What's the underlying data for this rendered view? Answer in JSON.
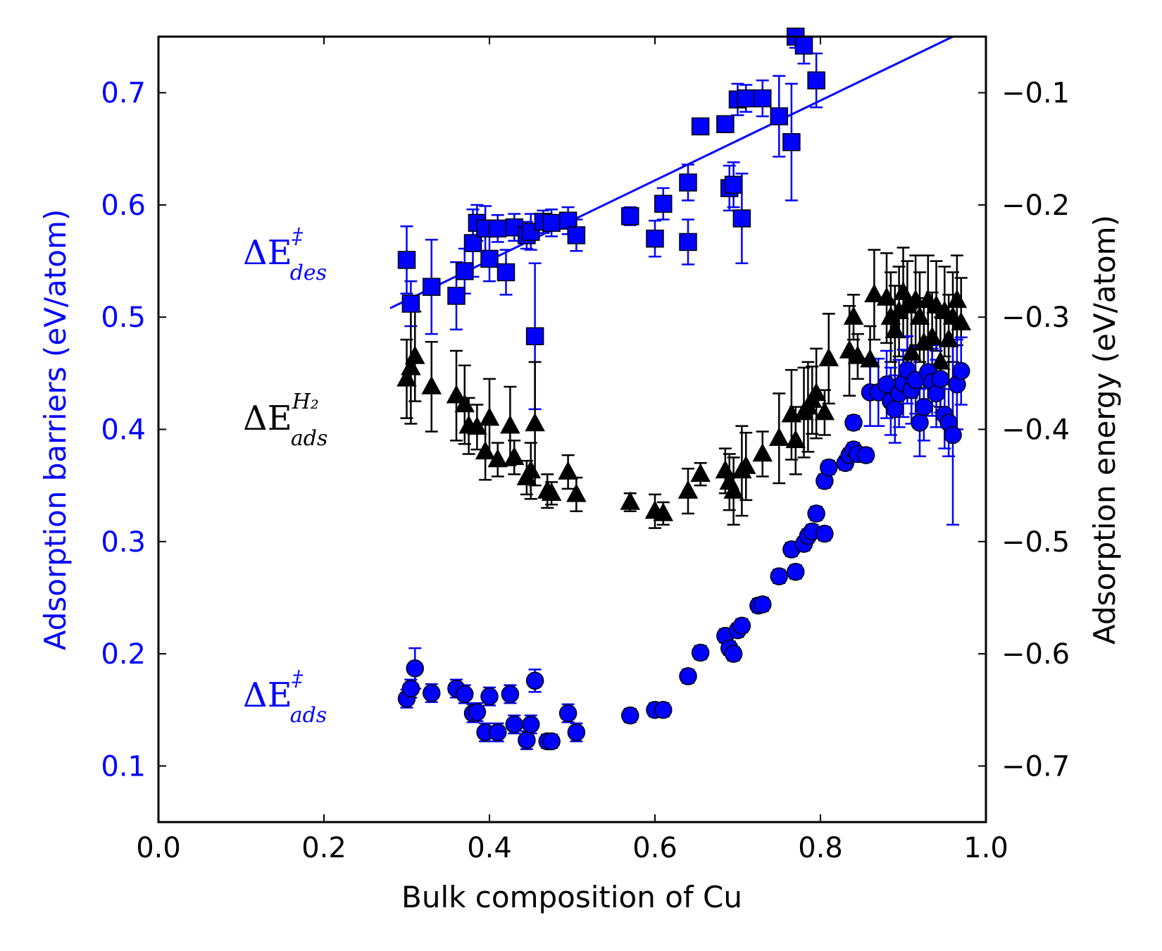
{
  "chart_data": {
    "type": "scatter",
    "xlabel": "Bulk composition of Cu",
    "ylabel_left": "Adsorption barriers (eV/atom)",
    "ylabel_right": "Adsorption energy (eV/atom)",
    "xlim": [
      0.0,
      1.0
    ],
    "ylim_left": [
      0.05,
      0.75
    ],
    "ylim_right": [
      -0.75,
      -0.05
    ],
    "x_ticks": [
      "0.0",
      "0.2",
      "0.4",
      "0.6",
      "0.8",
      "1.0"
    ],
    "y_left_ticks": [
      "0.1",
      "0.2",
      "0.3",
      "0.4",
      "0.5",
      "0.6",
      "0.7"
    ],
    "y_right_ticks": [
      "−0.7",
      "−0.6",
      "−0.5",
      "−0.4",
      "−0.3",
      "−0.2",
      "−0.1"
    ],
    "grid": false,
    "colors": {
      "barrier": "#0000ff",
      "energy": "#000000"
    },
    "series": [
      {
        "id": "des",
        "label_base": "ΔE",
        "label_sup": "‡",
        "label_sub": "des",
        "axis": "left",
        "marker": "square",
        "color": "#0000ff",
        "points": [
          [
            0.3,
            0.551,
            0.03
          ],
          [
            0.305,
            0.512,
            0.02
          ],
          [
            0.33,
            0.527,
            0.042
          ],
          [
            0.36,
            0.519,
            0.03
          ],
          [
            0.37,
            0.541,
            0.02
          ],
          [
            0.38,
            0.566,
            0.03
          ],
          [
            0.385,
            0.584,
            0.016
          ],
          [
            0.395,
            0.579,
            0.02
          ],
          [
            0.4,
            0.552,
            0.02
          ],
          [
            0.41,
            0.579,
            0.012
          ],
          [
            0.42,
            0.54,
            0.02
          ],
          [
            0.43,
            0.58,
            0.012
          ],
          [
            0.445,
            0.573,
            0.012
          ],
          [
            0.45,
            0.576,
            0.016
          ],
          [
            0.455,
            0.483,
            0.065
          ],
          [
            0.465,
            0.585,
            0.01
          ],
          [
            0.475,
            0.584,
            0.012
          ],
          [
            0.495,
            0.586,
            0.012
          ],
          [
            0.505,
            0.573,
            0.014
          ],
          [
            0.57,
            0.59,
            0.008
          ],
          [
            0.6,
            0.57,
            0.016
          ],
          [
            0.61,
            0.601,
            0.014
          ],
          [
            0.64,
            0.567,
            0.02
          ],
          [
            0.64,
            0.62,
            0.016
          ],
          [
            0.655,
            0.67,
            0.006
          ],
          [
            0.685,
            0.672,
            0.006
          ],
          [
            0.69,
            0.615,
            0.02
          ],
          [
            0.695,
            0.618,
            0.02
          ],
          [
            0.7,
            0.694,
            0.014
          ],
          [
            0.705,
            0.588,
            0.04
          ],
          [
            0.71,
            0.695,
            0.012
          ],
          [
            0.73,
            0.695,
            0.016
          ],
          [
            0.75,
            0.679,
            0.036
          ],
          [
            0.765,
            0.656,
            0.052
          ],
          [
            0.77,
            0.75,
            0.01
          ],
          [
            0.78,
            0.742,
            0.016
          ],
          [
            0.795,
            0.711,
            0.024
          ]
        ],
        "fit": {
          "x": [
            0.28,
            0.96
          ],
          "y": [
            0.508,
            0.75
          ]
        }
      },
      {
        "id": "h2",
        "label_base": "ΔE",
        "label_sup": "H₂",
        "label_sub": "ads",
        "axis": "right",
        "marker": "triangle",
        "color": "#000000",
        "points": [
          [
            0.3,
            -0.355,
            0.035
          ],
          [
            0.305,
            -0.345,
            0.05
          ],
          [
            0.31,
            -0.335,
            0.04
          ],
          [
            0.33,
            -0.362,
            0.04
          ],
          [
            0.36,
            -0.37,
            0.04
          ],
          [
            0.37,
            -0.378,
            0.035
          ],
          [
            0.375,
            -0.397,
            0.025
          ],
          [
            0.385,
            -0.398,
            0.02
          ],
          [
            0.395,
            -0.42,
            0.025
          ],
          [
            0.4,
            -0.39,
            0.035
          ],
          [
            0.41,
            -0.427,
            0.015
          ],
          [
            0.425,
            -0.397,
            0.035
          ],
          [
            0.43,
            -0.425,
            0.015
          ],
          [
            0.445,
            -0.443,
            0.015
          ],
          [
            0.45,
            -0.437,
            0.025
          ],
          [
            0.455,
            -0.395,
            0.055
          ],
          [
            0.47,
            -0.455,
            0.015
          ],
          [
            0.475,
            -0.457,
            0.01
          ],
          [
            0.495,
            -0.438,
            0.015
          ],
          [
            0.505,
            -0.458,
            0.015
          ],
          [
            0.57,
            -0.465,
            0.008
          ],
          [
            0.6,
            -0.473,
            0.015
          ],
          [
            0.61,
            -0.475,
            0.01
          ],
          [
            0.64,
            -0.455,
            0.02
          ],
          [
            0.655,
            -0.44,
            0.01
          ],
          [
            0.685,
            -0.437,
            0.02
          ],
          [
            0.69,
            -0.447,
            0.025
          ],
          [
            0.695,
            -0.455,
            0.03
          ],
          [
            0.705,
            -0.437,
            0.04
          ],
          [
            0.71,
            -0.433,
            0.03
          ],
          [
            0.73,
            -0.422,
            0.02
          ],
          [
            0.75,
            -0.408,
            0.04
          ],
          [
            0.765,
            -0.387,
            0.04
          ],
          [
            0.77,
            -0.41,
            0.03
          ],
          [
            0.78,
            -0.385,
            0.04
          ],
          [
            0.785,
            -0.38,
            0.04
          ],
          [
            0.79,
            -0.374,
            0.03
          ],
          [
            0.795,
            -0.368,
            0.04
          ],
          [
            0.805,
            -0.385,
            0.02
          ],
          [
            0.81,
            -0.337,
            0.04
          ],
          [
            0.835,
            -0.33,
            0.04
          ],
          [
            0.84,
            -0.3,
            0.02
          ],
          [
            0.845,
            -0.335,
            0.02
          ],
          [
            0.86,
            -0.338,
            0.03
          ],
          [
            0.865,
            -0.28,
            0.04
          ],
          [
            0.88,
            -0.283,
            0.04
          ],
          [
            0.885,
            -0.3,
            0.04
          ],
          [
            0.89,
            -0.312,
            0.04
          ],
          [
            0.895,
            -0.295,
            0.04
          ],
          [
            0.9,
            -0.278,
            0.04
          ],
          [
            0.905,
            -0.29,
            0.04
          ],
          [
            0.91,
            -0.332,
            0.04
          ],
          [
            0.915,
            -0.285,
            0.04
          ],
          [
            0.92,
            -0.3,
            0.04
          ],
          [
            0.925,
            -0.323,
            0.04
          ],
          [
            0.93,
            -0.285,
            0.04
          ],
          [
            0.935,
            -0.318,
            0.04
          ],
          [
            0.94,
            -0.29,
            0.04
          ],
          [
            0.945,
            -0.34,
            0.04
          ],
          [
            0.95,
            -0.295,
            0.04
          ],
          [
            0.955,
            -0.32,
            0.04
          ],
          [
            0.96,
            -0.3,
            0.04
          ],
          [
            0.965,
            -0.285,
            0.04
          ],
          [
            0.97,
            -0.305,
            0.04
          ]
        ]
      },
      {
        "id": "ads",
        "label_base": "ΔE",
        "label_sup": "‡",
        "label_sub": "ads",
        "axis": "left",
        "marker": "circle",
        "color": "#0000ff",
        "points": [
          [
            0.3,
            0.16,
            0.008
          ],
          [
            0.305,
            0.169,
            0.008
          ],
          [
            0.31,
            0.187,
            0.018
          ],
          [
            0.33,
            0.165,
            0.008
          ],
          [
            0.36,
            0.169,
            0.008
          ],
          [
            0.37,
            0.164,
            0.008
          ],
          [
            0.38,
            0.147,
            0.008
          ],
          [
            0.385,
            0.148,
            0.008
          ],
          [
            0.395,
            0.13,
            0.008
          ],
          [
            0.4,
            0.162,
            0.008
          ],
          [
            0.41,
            0.13,
            0.008
          ],
          [
            0.425,
            0.164,
            0.008
          ],
          [
            0.43,
            0.137,
            0.008
          ],
          [
            0.445,
            0.123,
            0.008
          ],
          [
            0.45,
            0.137,
            0.008
          ],
          [
            0.455,
            0.176,
            0.01
          ],
          [
            0.47,
            0.122,
            0.006
          ],
          [
            0.475,
            0.122,
            0.006
          ],
          [
            0.495,
            0.147,
            0.008
          ],
          [
            0.505,
            0.13,
            0.008
          ],
          [
            0.57,
            0.145,
            0.006
          ],
          [
            0.6,
            0.15,
            0.006
          ],
          [
            0.61,
            0.15,
            0.006
          ],
          [
            0.64,
            0.18,
            0.006
          ],
          [
            0.655,
            0.201,
            0.006
          ],
          [
            0.685,
            0.216,
            0.006
          ],
          [
            0.69,
            0.205,
            0.006
          ],
          [
            0.695,
            0.2,
            0.006
          ],
          [
            0.7,
            0.221,
            0.006
          ],
          [
            0.705,
            0.225,
            0.006
          ],
          [
            0.725,
            0.243,
            0.006
          ],
          [
            0.73,
            0.244,
            0.006
          ],
          [
            0.75,
            0.269,
            0.006
          ],
          [
            0.765,
            0.293,
            0.006
          ],
          [
            0.77,
            0.273,
            0.006
          ],
          [
            0.78,
            0.298,
            0.006
          ],
          [
            0.785,
            0.305,
            0.006
          ],
          [
            0.79,
            0.309,
            0.006
          ],
          [
            0.795,
            0.325,
            0.006
          ],
          [
            0.805,
            0.307,
            0.006
          ],
          [
            0.805,
            0.354,
            0.006
          ],
          [
            0.81,
            0.366,
            0.006
          ],
          [
            0.83,
            0.37,
            0.006
          ],
          [
            0.835,
            0.377,
            0.006
          ],
          [
            0.84,
            0.406,
            0.006
          ],
          [
            0.84,
            0.382,
            0.006
          ],
          [
            0.845,
            0.378,
            0.006
          ],
          [
            0.855,
            0.377,
            0.006
          ],
          [
            0.86,
            0.433,
            0.03
          ],
          [
            0.87,
            0.433,
            0.03
          ],
          [
            0.88,
            0.44,
            0.03
          ],
          [
            0.885,
            0.425,
            0.03
          ],
          [
            0.89,
            0.418,
            0.03
          ],
          [
            0.895,
            0.432,
            0.03
          ],
          [
            0.9,
            0.441,
            0.03
          ],
          [
            0.905,
            0.453,
            0.03
          ],
          [
            0.91,
            0.435,
            0.03
          ],
          [
            0.915,
            0.444,
            0.03
          ],
          [
            0.92,
            0.406,
            0.03
          ],
          [
            0.925,
            0.42,
            0.03
          ],
          [
            0.93,
            0.451,
            0.03
          ],
          [
            0.935,
            0.442,
            0.03
          ],
          [
            0.94,
            0.432,
            0.03
          ],
          [
            0.945,
            0.445,
            0.03
          ],
          [
            0.95,
            0.413,
            0.03
          ],
          [
            0.955,
            0.406,
            0.03
          ],
          [
            0.96,
            0.395,
            0.08
          ],
          [
            0.965,
            0.44,
            0.04
          ],
          [
            0.97,
            0.452,
            0.03
          ]
        ]
      }
    ]
  }
}
